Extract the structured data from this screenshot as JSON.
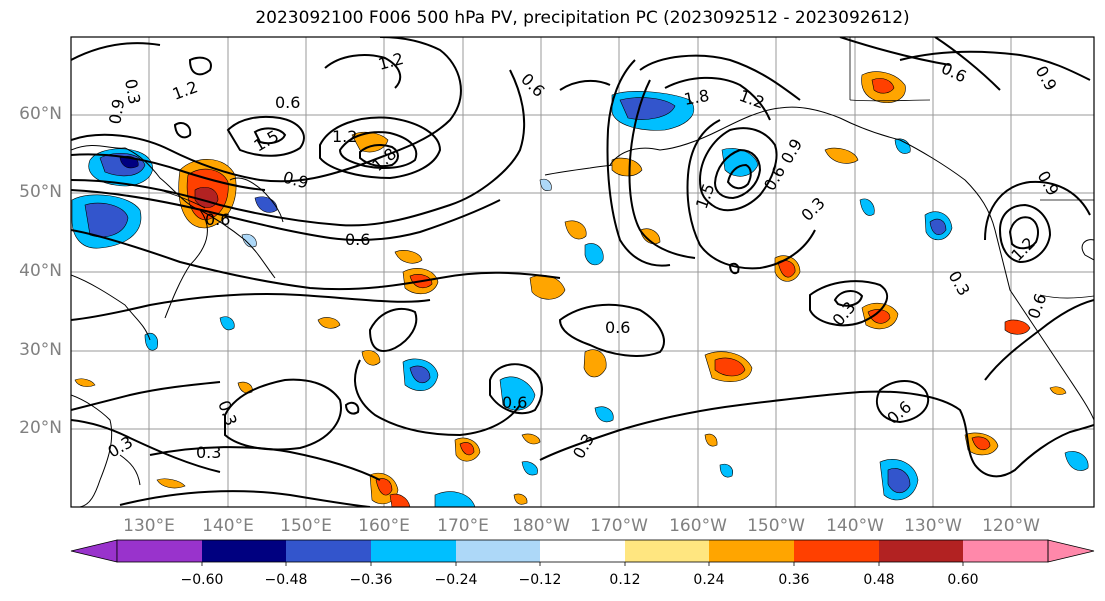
{
  "title": "2023092100 F006 500 hPa PV, precipitation PC (2023092512 - 2023092612)",
  "latitude_labels": [
    "60°N",
    "50°N",
    "40°N",
    "30°N",
    "20°N"
  ],
  "longitude_labels": [
    "130°E",
    "140°E",
    "150°E",
    "160°E",
    "170°E",
    "180°W",
    "170°W",
    "160°W",
    "150°W",
    "140°W",
    "130°W",
    "120°W"
  ],
  "colorbar": {
    "colors": [
      "#9933cc",
      "#000080",
      "#3355cc",
      "#00bfff",
      "#add8f8",
      "#ffffff",
      "#ffe680",
      "#ffa500",
      "#ff4000",
      "#b22222",
      "#ff88aa"
    ],
    "tick_labels": [
      "−0.60",
      "−0.48",
      "−0.36",
      "−0.24",
      "−0.12",
      "0.12",
      "0.24",
      "0.36",
      "0.48",
      "0.60"
    ],
    "under_color": "#9933cc",
    "over_color": "#ff88aa"
  },
  "contour_labels": [
    "0.3",
    "0.6",
    "0.9",
    "1.2",
    "1.5",
    "1.8"
  ]
}
